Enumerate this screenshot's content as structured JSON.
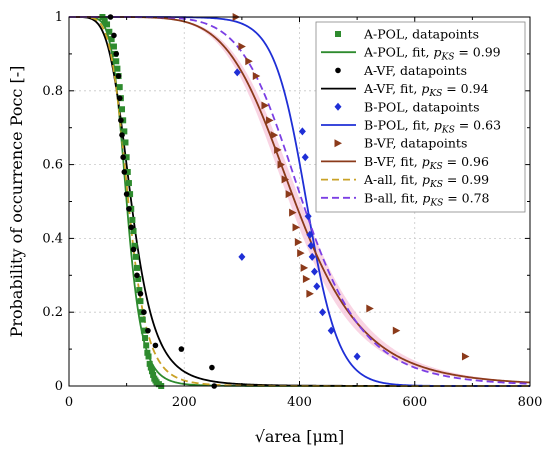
{
  "chart_data": {
    "type": "scatter",
    "xlabel": "√area [μm]",
    "ylabel": "Probability of occurrence Pocc [-]",
    "xlim": [
      0,
      800
    ],
    "ylim": [
      0,
      1
    ],
    "xticks": [
      0,
      200,
      400,
      600,
      800
    ],
    "yticks": [
      0,
      0.2,
      0.4,
      0.6,
      0.8,
      1
    ],
    "xtick_labels": [
      "0",
      "200",
      "400",
      "600",
      "800"
    ],
    "ytick_labels": [
      "0",
      "0.2",
      "0.4",
      "0.6",
      "0.8",
      "1"
    ],
    "grid": true,
    "legend_position": "top-right",
    "colors": {
      "A-POL": "#2e8b2e",
      "A-VF": "#000000",
      "B-POL": "#1f2fd6",
      "B-VF": "#8b3a1a",
      "A-all": "#c9a227",
      "B-all": "#7b3fe4",
      "B-VF-band": "#f7c6d9"
    },
    "series": [
      {
        "name": "A-POL, datapoints",
        "kind": "points",
        "marker": "square",
        "color": "#2e8b2e",
        "x": [
          58,
          62,
          66,
          70,
          74,
          78,
          80,
          82,
          84,
          86,
          88,
          90,
          92,
          94,
          96,
          98,
          100,
          102,
          104,
          106,
          108,
          110,
          112,
          114,
          116,
          118,
          120,
          122,
          124,
          126,
          128,
          130,
          132,
          134,
          136,
          138,
          140,
          142,
          144,
          146,
          148,
          150,
          152,
          156,
          160
        ],
        "y": [
          1.0,
          0.99,
          0.98,
          0.96,
          0.94,
          0.92,
          0.9,
          0.88,
          0.86,
          0.84,
          0.81,
          0.78,
          0.75,
          0.72,
          0.69,
          0.66,
          0.62,
          0.58,
          0.55,
          0.52,
          0.48,
          0.45,
          0.42,
          0.38,
          0.35,
          0.32,
          0.29,
          0.26,
          0.23,
          0.2,
          0.18,
          0.15,
          0.13,
          0.11,
          0.09,
          0.08,
          0.06,
          0.05,
          0.04,
          0.03,
          0.02,
          0.015,
          0.01,
          0.005,
          0.0
        ]
      },
      {
        "name": "A-POL, fit, p_KS = 0.99",
        "kind": "line",
        "dist": "loglogistic",
        "median": 100,
        "shape": 7.5,
        "dash": "solid",
        "color": "#2e8b2e"
      },
      {
        "name": "A-VF, datapoints",
        "kind": "points",
        "marker": "circle",
        "color": "#000000",
        "x": [
          72,
          78,
          82,
          86,
          88,
          90,
          92,
          94,
          96,
          100,
          104,
          108,
          112,
          118,
          124,
          130,
          137,
          150,
          195,
          248,
          252
        ],
        "y": [
          1.0,
          0.95,
          0.9,
          0.84,
          0.78,
          0.72,
          0.68,
          0.62,
          0.58,
          0.52,
          0.48,
          0.43,
          0.37,
          0.3,
          0.25,
          0.2,
          0.15,
          0.11,
          0.1,
          0.05,
          0.0
        ]
      },
      {
        "name": "A-VF, fit, p_KS = 0.94",
        "kind": "line",
        "dist": "loglogistic",
        "median": 108,
        "shape": 5.2,
        "dash": "solid",
        "color": "#000000"
      },
      {
        "name": "B-POL, datapoints",
        "kind": "points",
        "marker": "diamond",
        "color": "#1f2fd6",
        "x": [
          292,
          300,
          405,
          410,
          415,
          418,
          420,
          422,
          426,
          430,
          440,
          455,
          500
        ],
        "y": [
          0.85,
          0.35,
          0.69,
          0.62,
          0.46,
          0.41,
          0.38,
          0.35,
          0.31,
          0.27,
          0.2,
          0.15,
          0.08
        ],
        "point_labels": []
      },
      {
        "name": "B-POL, fit, p_KS = 0.63",
        "kind": "line",
        "dist": "logistic",
        "median": 412,
        "scale": 28,
        "dash": "solid",
        "color": "#1f2fd6"
      },
      {
        "name": "B-VF, datapoints",
        "kind": "points",
        "marker": "triangle-right",
        "color": "#8b3a1a",
        "x": [
          290,
          300,
          312,
          325,
          340,
          348,
          356,
          362,
          368,
          375,
          382,
          388,
          394,
          398,
          402,
          408,
          412,
          418,
          522,
          568,
          688
        ],
        "y": [
          1.0,
          0.92,
          0.88,
          0.84,
          0.76,
          0.72,
          0.68,
          0.64,
          0.6,
          0.56,
          0.52,
          0.47,
          0.43,
          0.39,
          0.36,
          0.32,
          0.29,
          0.25,
          0.21,
          0.15,
          0.08
        ]
      },
      {
        "name": "B-VF, fit, p_KS = 0.96",
        "kind": "line",
        "dist": "loglogistic",
        "median": 392,
        "shape": 6.5,
        "dash": "solid",
        "color": "#8b3a1a",
        "band": true
      },
      {
        "name": "A-all, fit, p_KS = 0.99",
        "kind": "line",
        "dist": "loglogistic",
        "median": 103,
        "shape": 6.3,
        "dash": "dashed",
        "color": "#c9a227"
      },
      {
        "name": "B-all, fit, p_KS = 0.78",
        "kind": "line",
        "dist": "loglogistic",
        "median": 405,
        "shape": 7.5,
        "dash": "dashed",
        "color": "#7b3fe4"
      }
    ],
    "legend": [
      {
        "label": "A-POL, datapoints",
        "symbol": "square",
        "color": "#2e8b2e"
      },
      {
        "label": "A-POL, fit, ",
        "pks": "0.99",
        "symbol": "line",
        "color": "#2e8b2e"
      },
      {
        "label": "A-VF, datapoints",
        "symbol": "circle",
        "color": "#000000"
      },
      {
        "label": "A-VF, fit, ",
        "pks": "0.94",
        "symbol": "line",
        "color": "#000000"
      },
      {
        "label": "B-POL, datapoints",
        "symbol": "diamond",
        "color": "#1f2fd6"
      },
      {
        "label": "B-POL, fit, ",
        "pks": "0.63",
        "symbol": "line",
        "color": "#1f2fd6"
      },
      {
        "label": "B-VF, datapoints",
        "symbol": "triangle-right",
        "color": "#8b3a1a"
      },
      {
        "label": "B-VF, fit, ",
        "pks": "0.96",
        "symbol": "line",
        "color": "#8b3a1a"
      },
      {
        "label": "A-all, fit, ",
        "pks": "0.99",
        "symbol": "dashed",
        "color": "#c9a227"
      },
      {
        "label": "B-all, fit, ",
        "pks": "0.78",
        "symbol": "dashed",
        "color": "#7b3fe4"
      }
    ],
    "pks_symbol": "p",
    "pks_subscript": "KS",
    "pks_equals": "="
  }
}
